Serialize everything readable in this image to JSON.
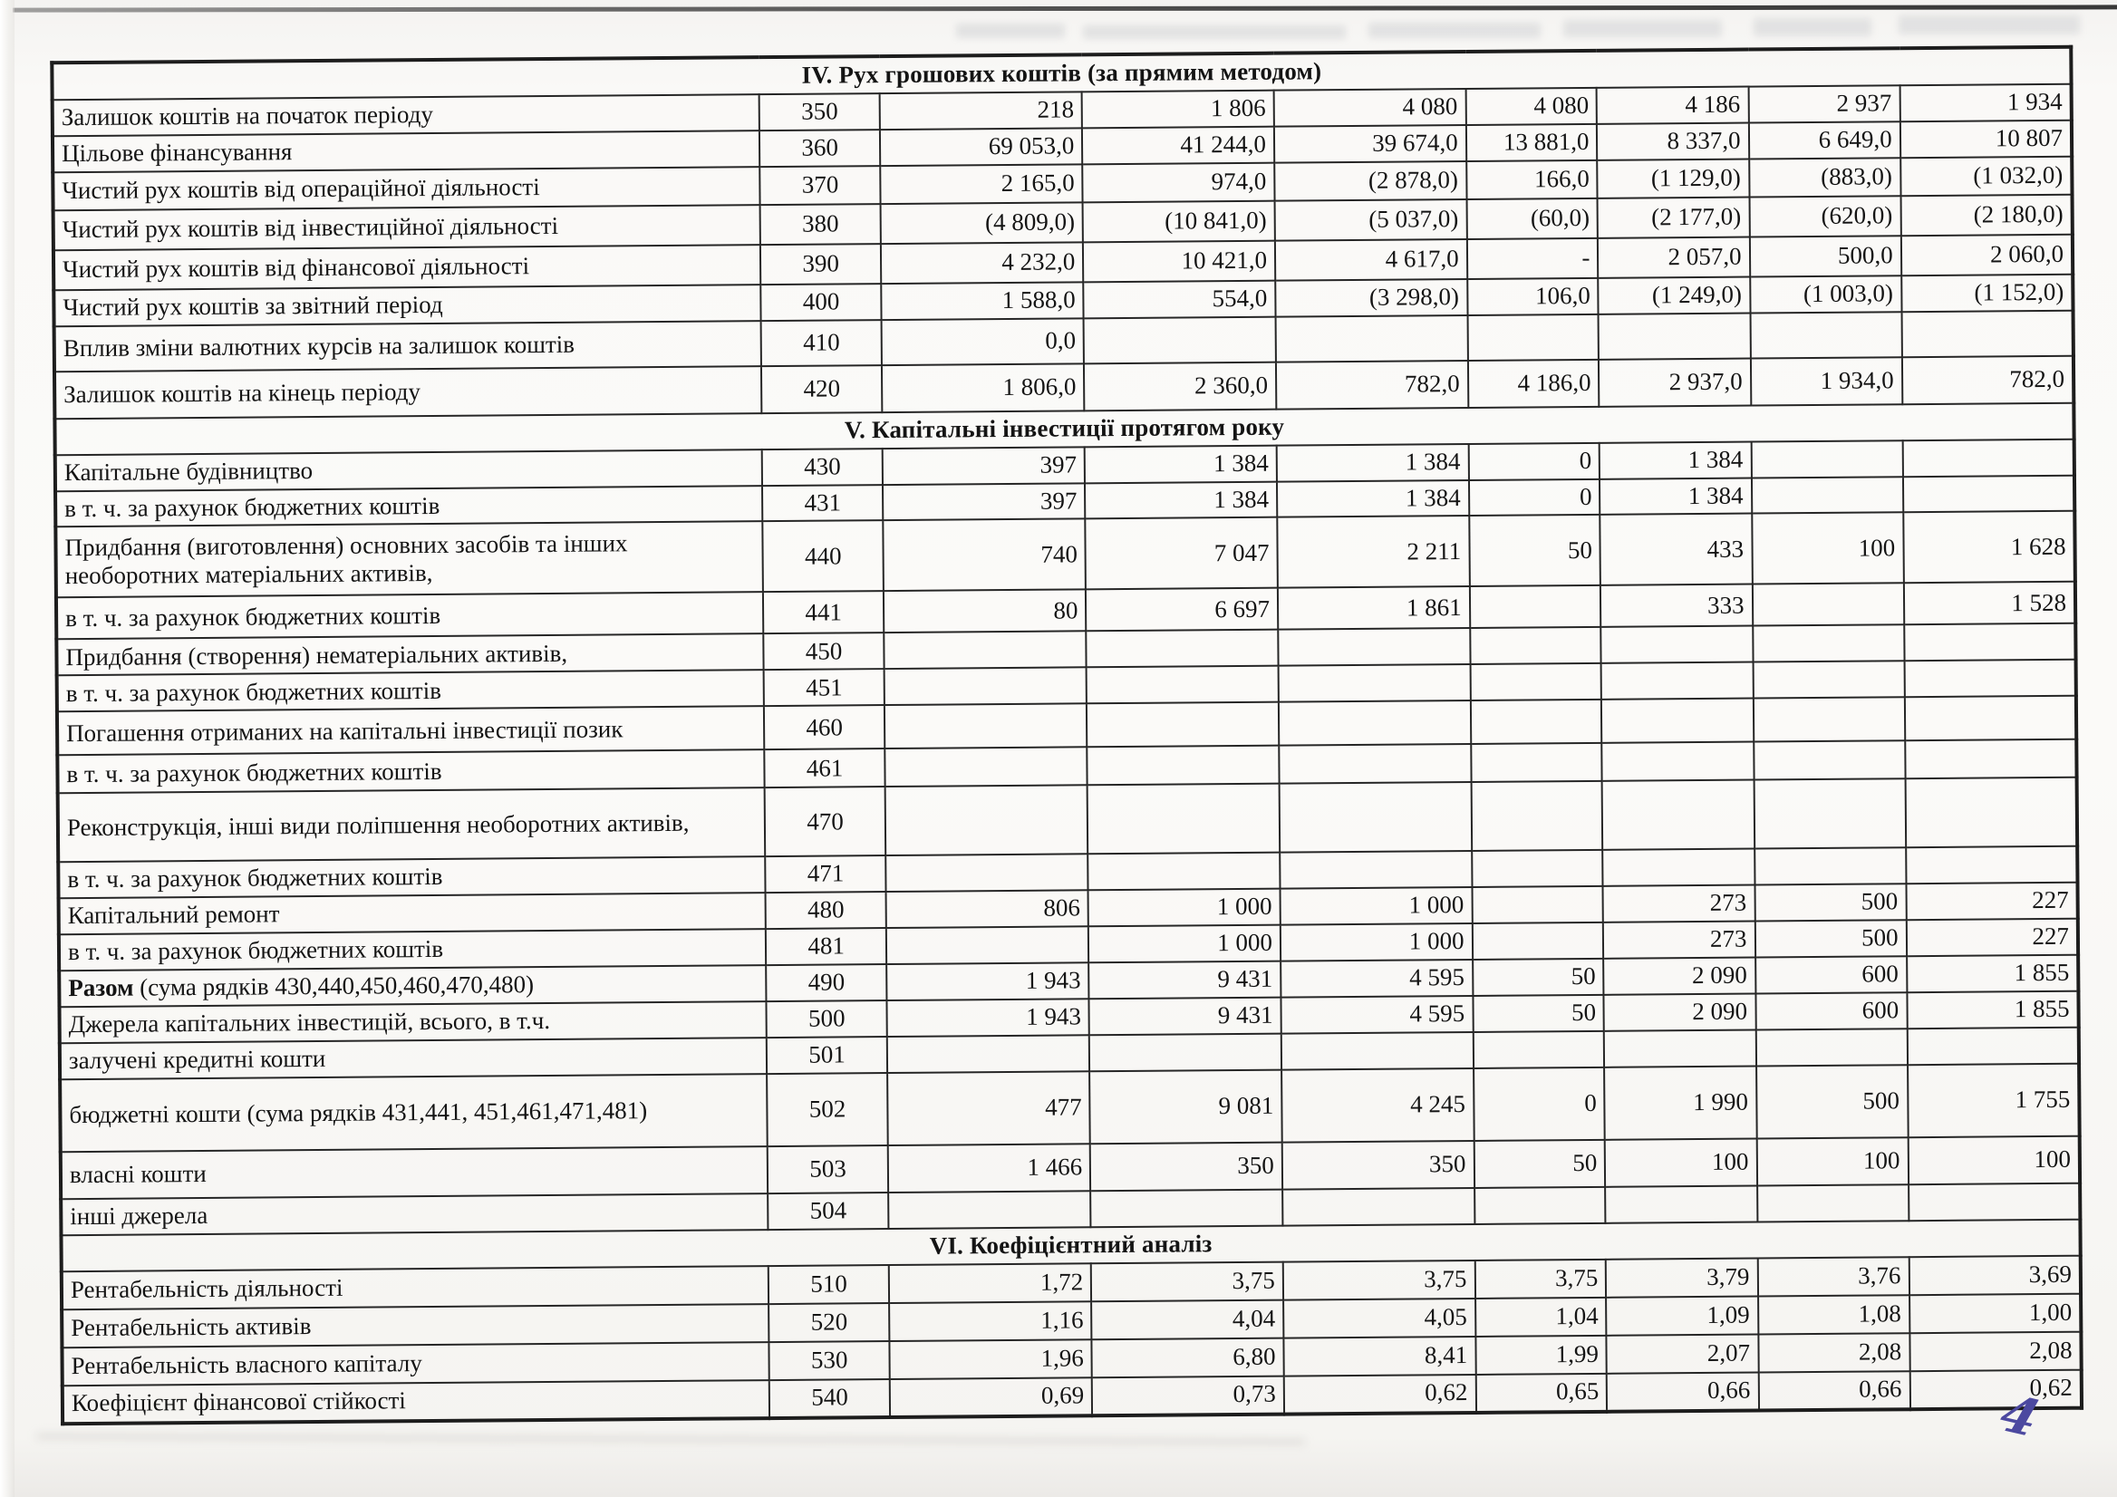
{
  "colors": {
    "handwritten_ink": "#4c49a0",
    "table_line": "#1d1d1d"
  },
  "page": {
    "handwritten_page_number": "4"
  },
  "table": {
    "sections": [
      {
        "title": "IV. Рух грошових коштів (за прямим методом)",
        "rows": [
          {
            "label": "Залишок коштів на початок періоду",
            "code": "350",
            "values": [
              "218",
              "1 806",
              "4 080",
              "4 080",
              "4 186",
              "2 937",
              "1 934"
            ]
          },
          {
            "label": "Цільове фінансування",
            "code": "360",
            "values": [
              "69 053,0",
              "41 244,0",
              "39 674,0",
              "13 881,0",
              "8 337,0",
              "6 649,0",
              "10 807"
            ]
          },
          {
            "label": "Чистий рух коштів від операційної діяльності",
            "code": "370",
            "values": [
              "2 165,0",
              "974,0",
              "(2 878,0)",
              "166,0",
              "(1 129,0)",
              "(883,0)",
              "(1 032,0)"
            ]
          },
          {
            "label": "Чистий рух коштів від інвестиційної діяльності",
            "code": "380",
            "values": [
              "(4 809,0)",
              "(10 841,0)",
              "(5 037,0)",
              "(60,0)",
              "(2 177,0)",
              "(620,0)",
              "(2 180,0)"
            ]
          },
          {
            "label": "Чистий рух коштів від фінансової діяльності",
            "code": "390",
            "values": [
              "4 232,0",
              "10 421,0",
              "4 617,0",
              "-",
              "2 057,0",
              "500,0",
              "2 060,0"
            ]
          },
          {
            "label": "Чистий рух коштів за звітний період",
            "code": "400",
            "values": [
              "1 588,0",
              "554,0",
              "(3 298,0)",
              "106,0",
              "(1 249,0)",
              "(1 003,0)",
              "(1 152,0)"
            ]
          },
          {
            "label": "Вплив зміни валютних курсів на залишок коштів",
            "code": "410",
            "values": [
              "0,0",
              "",
              "",
              "",
              "",
              "",
              ""
            ]
          },
          {
            "label": "Залишок коштів на кінець  періоду",
            "code": "420",
            "values": [
              "1 806,0",
              "2 360,0",
              "782,0",
              "4 186,0",
              "2 937,0",
              "1 934,0",
              "782,0"
            ]
          }
        ]
      },
      {
        "title": "V. Капітальні інвестиції протягом року",
        "rows": [
          {
            "label": "Капітальне будівництво",
            "code": "430",
            "values": [
              "397",
              "1 384",
              "1 384",
              "0",
              "1 384",
              "",
              ""
            ]
          },
          {
            "label": "в т. ч. за рахунок бюджетних коштів",
            "code": "431",
            "values": [
              "397",
              "1 384",
              "1 384",
              "0",
              "1 384",
              "",
              ""
            ]
          },
          {
            "label": "Придбання (виготовлення) основних засобів та інших необоротних матеріальних активів,",
            "code": "440",
            "values": [
              "740",
              "7 047",
              "2 211",
              "50",
              "433",
              "100",
              "1 628"
            ]
          },
          {
            "label": "в т. ч. за рахунок бюджетних коштів",
            "code": "441",
            "values": [
              "80",
              "6 697",
              "1 861",
              "",
              "333",
              "",
              "1 528"
            ]
          },
          {
            "label": "Придбання (створення) нематеріальних активів,",
            "code": "450",
            "values": [
              "",
              "",
              "",
              "",
              "",
              "",
              ""
            ]
          },
          {
            "label": "в т. ч. за рахунок бюджетних коштів",
            "code": "451",
            "values": [
              "",
              "",
              "",
              "",
              "",
              "",
              ""
            ]
          },
          {
            "label": "Погашення отриманих на капітальні інвестиції позик",
            "code": "460",
            "values": [
              "",
              "",
              "",
              "",
              "",
              "",
              ""
            ]
          },
          {
            "label": "в т. ч. за рахунок бюджетних коштів",
            "code": "461",
            "values": [
              "",
              "",
              "",
              "",
              "",
              "",
              ""
            ]
          },
          {
            "label": "Реконструкція, інші види поліпшення необоротних активів,",
            "code": "470",
            "values": [
              "",
              "",
              "",
              "",
              "",
              "",
              ""
            ]
          },
          {
            "label": "в т. ч. за рахунок бюджетних коштів",
            "code": "471",
            "values": [
              "",
              "",
              "",
              "",
              "",
              "",
              ""
            ]
          },
          {
            "label": "Капітальний ремонт",
            "code": "480",
            "values": [
              "806",
              "1 000",
              "1 000",
              "",
              "273",
              "500",
              "227"
            ]
          },
          {
            "label": "в т. ч. за рахунок бюджетних коштів",
            "code": "481",
            "values": [
              "",
              "1 000",
              "1 000",
              "",
              "273",
              "500",
              "227"
            ]
          },
          {
            "label_parts": [
              {
                "text": "Разом",
                "bold": true
              },
              {
                "text": " (сума рядків  430,440,450,460,470,480)",
                "bold": false
              }
            ],
            "code": "490",
            "values": [
              "1 943",
              "9 431",
              "4 595",
              "50",
              "2 090",
              "600",
              "1 855"
            ]
          },
          {
            "label": "Джерела капітальних інвестицій, всього, в т.ч.",
            "code": "500",
            "values": [
              "1 943",
              "9 431",
              "4 595",
              "50",
              "2 090",
              "600",
              "1 855"
            ]
          },
          {
            "label": "залучені кредитні кошти",
            "code": "501",
            "values": [
              "",
              "",
              "",
              "",
              "",
              "",
              ""
            ]
          },
          {
            "label": "бюджетні кошти (сума рядків 431,441, 451,461,471,481)",
            "code": "502",
            "values": [
              "477",
              "9 081",
              "4 245",
              "0",
              "1 990",
              "500",
              "1 755"
            ]
          },
          {
            "label": "власні кошти",
            "code": "503",
            "values": [
              "1 466",
              "350",
              "350",
              "50",
              "100",
              "100",
              "100"
            ]
          },
          {
            "label": "інші джерела",
            "code": "504",
            "values": [
              "",
              "",
              "",
              "",
              "",
              "",
              ""
            ]
          }
        ]
      },
      {
        "title": "VI. Коефіцієнтний аналіз",
        "rows": [
          {
            "label": "Рентабельність діяльності",
            "code": "510",
            "values": [
              "1,72",
              "3,75",
              "3,75",
              "3,75",
              "3,79",
              "3,76",
              "3,69"
            ]
          },
          {
            "label": "Рентабельність активів",
            "code": "520",
            "values": [
              "1,16",
              "4,04",
              "4,05",
              "1,04",
              "1,09",
              "1,08",
              "1,00"
            ]
          },
          {
            "label": "Рентабельність власного капіталу",
            "code": "530",
            "values": [
              "1,96",
              "6,80",
              "8,41",
              "1,99",
              "2,07",
              "2,08",
              "2,08"
            ]
          },
          {
            "label": "Коефіцієнт фінансової стійкості",
            "code": "540",
            "values": [
              "0,69",
              "0,73",
              "0,62",
              "0,65",
              "0,66",
              "0,66",
              "0,62"
            ]
          }
        ]
      }
    ]
  }
}
